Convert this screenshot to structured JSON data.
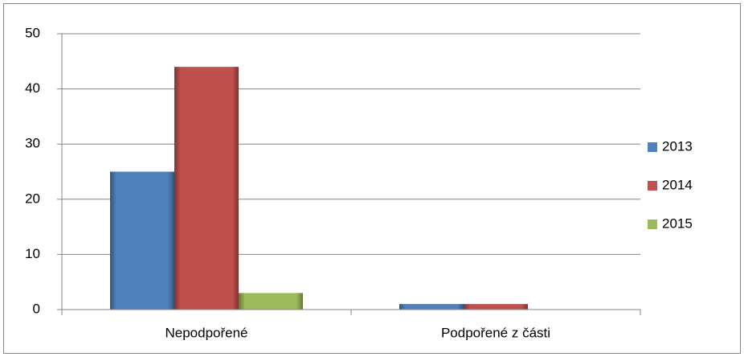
{
  "chart_data": {
    "type": "bar",
    "categories": [
      "Nepodpořené",
      "Podpořené z části"
    ],
    "series": [
      {
        "name": "2013",
        "color": "#4f81bd",
        "values": [
          25,
          1
        ]
      },
      {
        "name": "2014",
        "color": "#c0504d",
        "values": [
          44,
          1
        ]
      },
      {
        "name": "2015",
        "color": "#9bbb59",
        "values": [
          3,
          0
        ]
      }
    ],
    "ylim": [
      0,
      50
    ],
    "yticks": [
      0,
      10,
      20,
      30,
      40,
      50
    ],
    "grid": true,
    "legend": "right"
  }
}
